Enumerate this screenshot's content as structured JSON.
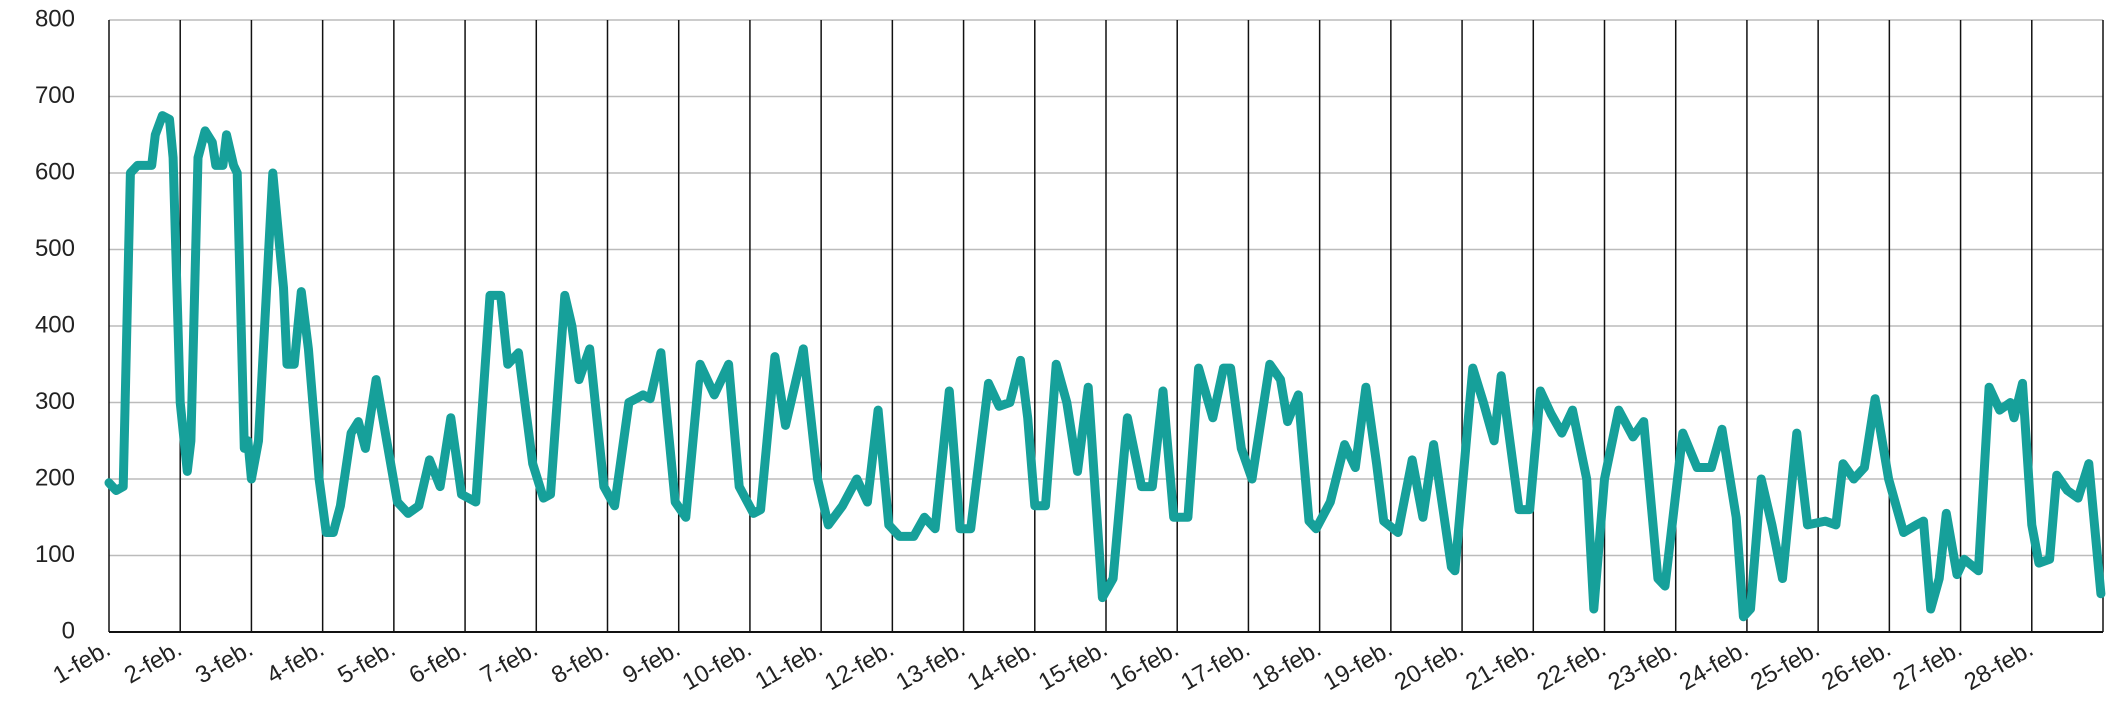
{
  "chart_data": {
    "type": "line",
    "x": [
      0,
      0.1,
      0.2,
      0.3,
      0.4,
      0.6,
      0.65,
      0.75,
      0.85,
      0.9,
      1.0,
      1.1,
      1.15,
      1.25,
      1.35,
      1.45,
      1.5,
      1.6,
      1.65,
      1.75,
      1.8,
      1.9,
      1.95,
      2.0,
      2.1,
      2.3,
      2.4,
      2.45,
      2.5,
      2.6,
      2.7,
      2.8,
      2.95,
      3.05,
      3.15,
      3.25,
      3.4,
      3.5,
      3.6,
      3.75,
      3.9,
      4.05,
      4.2,
      4.35,
      4.5,
      4.65,
      4.8,
      4.95,
      5.15,
      5.35,
      5.5,
      5.6,
      5.75,
      5.95,
      6.1,
      6.2,
      6.4,
      6.5,
      6.6,
      6.75,
      6.95,
      7.1,
      7.3,
      7.5,
      7.6,
      7.75,
      7.95,
      8.1,
      8.3,
      8.5,
      8.7,
      8.85,
      9.05,
      9.15,
      9.35,
      9.5,
      9.75,
      9.95,
      10.1,
      10.3,
      10.5,
      10.65,
      10.8,
      10.95,
      11.1,
      11.3,
      11.45,
      11.6,
      11.8,
      11.95,
      12.1,
      12.35,
      12.5,
      12.65,
      12.8,
      12.9,
      13.0,
      13.15,
      13.3,
      13.45,
      13.6,
      13.75,
      13.95,
      14.1,
      14.3,
      14.5,
      14.65,
      14.8,
      14.95,
      15.15,
      15.3,
      15.5,
      15.65,
      15.75,
      15.9,
      16.05,
      16.3,
      16.45,
      16.55,
      16.7,
      16.85,
      16.95,
      17.15,
      17.35,
      17.5,
      17.65,
      17.8,
      17.9,
      18.1,
      18.3,
      18.45,
      18.6,
      18.85,
      18.9,
      19.15,
      19.3,
      19.45,
      19.55,
      19.8,
      19.95,
      20.1,
      20.25,
      20.4,
      20.55,
      20.75,
      20.85,
      21.0,
      21.2,
      21.4,
      21.55,
      21.75,
      21.85,
      22.1,
      22.3,
      22.5,
      22.65,
      22.85,
      22.95,
      23.05,
      23.2,
      23.35,
      23.5,
      23.7,
      23.85,
      24.1,
      24.25,
      24.35,
      24.5,
      24.65,
      24.8,
      24.99,
      25.2,
      25.38,
      25.48,
      25.58,
      25.7,
      25.8,
      25.95,
      26.05,
      26.25,
      26.4,
      26.55,
      26.7,
      26.75,
      26.87,
      27.0,
      27.1,
      27.25,
      27.35,
      27.5,
      27.65,
      27.8,
      27.97
    ],
    "series": [
      {
        "color": "#16a09a",
        "values": [
          195,
          185,
          190,
          600,
          610,
          610,
          650,
          675,
          670,
          620,
          300,
          210,
          250,
          620,
          655,
          640,
          610,
          610,
          650,
          610,
          600,
          240,
          250,
          200,
          250,
          600,
          500,
          450,
          350,
          350,
          445,
          370,
          200,
          130,
          130,
          165,
          260,
          275,
          240,
          330,
          250,
          170,
          155,
          165,
          225,
          190,
          280,
          180,
          170,
          440,
          440,
          350,
          365,
          220,
          175,
          180,
          440,
          400,
          330,
          370,
          190,
          165,
          300,
          310,
          305,
          365,
          170,
          150,
          350,
          310,
          350,
          190,
          155,
          160,
          360,
          270,
          370,
          200,
          140,
          165,
          200,
          170,
          290,
          140,
          125,
          125,
          150,
          135,
          315,
          135,
          135,
          325,
          295,
          300,
          355,
          280,
          165,
          165,
          350,
          300,
          210,
          320,
          45,
          70,
          280,
          190,
          190,
          315,
          150,
          150,
          345,
          280,
          345,
          345,
          240,
          200,
          350,
          330,
          275,
          310,
          145,
          135,
          170,
          245,
          215,
          320,
          220,
          145,
          130,
          225,
          150,
          245,
          85,
          80,
          345,
          300,
          250,
          335,
          160,
          160,
          315,
          285,
          260,
          290,
          200,
          30,
          200,
          290,
          255,
          275,
          70,
          60,
          260,
          215,
          215,
          265,
          150,
          20,
          30,
          200,
          140,
          70,
          260,
          140,
          145,
          140,
          220,
          200,
          215,
          305,
          200,
          130,
          140,
          145,
          30,
          70,
          155,
          75,
          95,
          80,
          320,
          290,
          300,
          280,
          325,
          140,
          90,
          95,
          205,
          185,
          175,
          220,
          50
        ]
      }
    ],
    "xlim": [
      0,
      28
    ],
    "xticks": [
      {
        "value": 0,
        "label": "1-feb."
      },
      {
        "value": 1,
        "label": "2-feb."
      },
      {
        "value": 2,
        "label": "3-feb."
      },
      {
        "value": 3,
        "label": "4-feb."
      },
      {
        "value": 4,
        "label": "5-feb."
      },
      {
        "value": 5,
        "label": "6-feb."
      },
      {
        "value": 6,
        "label": "7-feb."
      },
      {
        "value": 7,
        "label": "8-feb."
      },
      {
        "value": 8,
        "label": "9-feb."
      },
      {
        "value": 9,
        "label": "10-feb."
      },
      {
        "value": 10,
        "label": "11-feb."
      },
      {
        "value": 11,
        "label": "12-feb."
      },
      {
        "value": 12,
        "label": "13-feb."
      },
      {
        "value": 13,
        "label": "14-feb."
      },
      {
        "value": 14,
        "label": "15-feb."
      },
      {
        "value": 15,
        "label": "16-feb."
      },
      {
        "value": 16,
        "label": "17-feb."
      },
      {
        "value": 17,
        "label": "18-feb."
      },
      {
        "value": 18,
        "label": "19-feb."
      },
      {
        "value": 19,
        "label": "20-feb."
      },
      {
        "value": 20,
        "label": "21-feb."
      },
      {
        "value": 21,
        "label": "22-feb."
      },
      {
        "value": 22,
        "label": "23-feb."
      },
      {
        "value": 23,
        "label": "24-feb."
      },
      {
        "value": 24,
        "label": "25-feb."
      },
      {
        "value": 25,
        "label": "26-feb."
      },
      {
        "value": 26,
        "label": "27-feb."
      },
      {
        "value": 27,
        "label": "28-feb."
      },
      28
    ],
    "ylim": [
      0,
      800
    ],
    "yticks": [
      0,
      100,
      200,
      300,
      400,
      500,
      600,
      700,
      800
    ],
    "grid": true
  }
}
